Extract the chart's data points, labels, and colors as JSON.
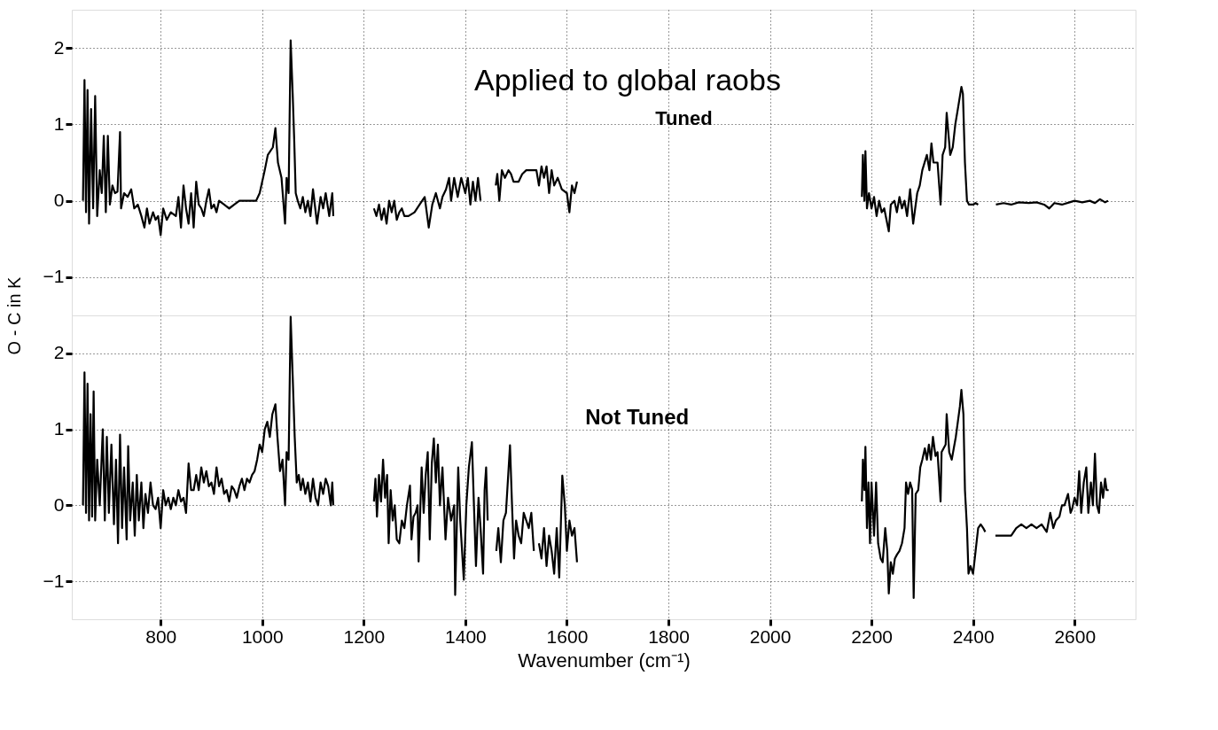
{
  "chart_data": [
    {
      "type": "line",
      "ylabel": "O - C in K",
      "annotations": [
        "Applied to global raobs",
        "Tuned"
      ],
      "xlim": [
        625,
        2720
      ],
      "ylim": [
        -1.5,
        2.5
      ],
      "xticks": [
        800,
        1000,
        1200,
        1400,
        1600,
        1800,
        2000,
        2200,
        2400,
        2600
      ],
      "yticks": [
        -1,
        0,
        1,
        2
      ],
      "grid": true,
      "tick_labels": "y",
      "series": [
        {
          "color": "#000000",
          "x": [
            647,
            650,
            653,
            656,
            659,
            663,
            667,
            671,
            675,
            680,
            684,
            688,
            692,
            696,
            700,
            705,
            710,
            715,
            720,
            722,
            728,
            735,
            742,
            748,
            755,
            762,
            768,
            773,
            778,
            785,
            790,
            795,
            800,
            805,
            812,
            820,
            830,
            835,
            840,
            845,
            850,
            855,
            860,
            865,
            870,
            875,
            880,
            885,
            890,
            895,
            900,
            905,
            910,
            915,
            925,
            935,
            945,
            955,
            988,
            995,
            1005,
            1011,
            1021,
            1026,
            1031,
            1038,
            1045,
            1048,
            1052,
            1056,
            1060,
            1063,
            1066,
            1070,
            1075,
            1080,
            1085,
            1090,
            1095,
            1100,
            1108,
            1115,
            1120,
            1125,
            1132,
            1138,
            1140,
            1180,
            1220,
            1225,
            1230,
            1235,
            1240,
            1245,
            1250,
            1255,
            1260,
            1265,
            1270,
            1275,
            1280,
            1288,
            1300,
            1310,
            1320,
            1328,
            1335,
            1342,
            1350,
            1355,
            1362,
            1368,
            1372,
            1378,
            1385,
            1392,
            1400,
            1405,
            1410,
            1415,
            1420,
            1425,
            1430,
            1445,
            1460,
            1463,
            1467,
            1472,
            1478,
            1485,
            1490,
            1495,
            1505,
            1512,
            1520,
            1528,
            1540,
            1545,
            1550,
            1555,
            1560,
            1565,
            1570,
            1575,
            1582,
            1590,
            1600,
            1605,
            1610,
            1615,
            1620,
            1900,
            2181,
            2183,
            2186,
            2188,
            2191,
            2195,
            2200,
            2205,
            2210,
            2215,
            2220,
            2225,
            2234,
            2238,
            2245,
            2250,
            2255,
            2260,
            2265,
            2270,
            2276,
            2282,
            2285,
            2290,
            2295,
            2300,
            2309,
            2314,
            2318,
            2322,
            2330,
            2336,
            2340,
            2345,
            2348,
            2355,
            2360,
            2365,
            2370,
            2377,
            2380,
            2384,
            2388,
            2392,
            2400,
            2405,
            2410,
            2428,
            2445,
            2460,
            2475,
            2490,
            2510,
            2525,
            2540,
            2550,
            2560,
            2575,
            2590,
            2600,
            2615,
            2630,
            2640,
            2650,
            2660,
            2666
          ],
          "values": [
            0.0,
            1.58,
            -0.15,
            1.45,
            -0.3,
            1.2,
            -0.1,
            1.37,
            -0.2,
            0.4,
            0.1,
            0.85,
            -0.15,
            0.85,
            -0.05,
            0.2,
            0.1,
            0.12,
            0.9,
            -0.1,
            0.1,
            0.05,
            0.15,
            -0.1,
            -0.05,
            -0.2,
            -0.35,
            -0.1,
            -0.3,
            -0.15,
            -0.25,
            -0.2,
            -0.45,
            -0.1,
            -0.25,
            -0.15,
            -0.2,
            0.05,
            -0.35,
            0.2,
            -0.1,
            -0.3,
            0.1,
            -0.35,
            0.25,
            -0.05,
            -0.1,
            -0.2,
            0.0,
            0.15,
            -0.1,
            -0.05,
            -0.15,
            0.0,
            -0.05,
            -0.1,
            -0.05,
            0.0,
            0.0,
            0.1,
            0.4,
            0.6,
            0.7,
            0.95,
            0.5,
            0.3,
            -0.3,
            0.3,
            0.1,
            2.1,
            1.4,
            0.8,
            0.1,
            0.0,
            -0.1,
            0.05,
            -0.15,
            0.0,
            -0.2,
            0.15,
            -0.3,
            0.05,
            -0.1,
            0.1,
            -0.2,
            0.1,
            -0.2,
            null,
            -0.1,
            -0.2,
            -0.05,
            -0.25,
            -0.1,
            -0.3,
            0.0,
            -0.15,
            0.0,
            -0.25,
            -0.15,
            -0.1,
            -0.2,
            -0.2,
            -0.15,
            -0.05,
            0.05,
            -0.35,
            -0.05,
            0.1,
            -0.1,
            0.05,
            0.15,
            0.3,
            0.0,
            0.3,
            0.05,
            0.3,
            0.1,
            0.3,
            -0.05,
            0.25,
            0.0,
            0.3,
            0.0,
            null,
            0.2,
            0.35,
            0.0,
            0.4,
            0.3,
            0.4,
            0.35,
            0.25,
            0.25,
            0.35,
            0.4,
            0.4,
            0.4,
            0.2,
            0.45,
            0.3,
            0.45,
            0.1,
            0.4,
            0.2,
            0.3,
            0.15,
            0.1,
            -0.15,
            0.2,
            0.1,
            0.25,
            null,
            0.05,
            0.6,
            0.0,
            0.65,
            -0.1,
            0.1,
            -0.1,
            0.05,
            -0.2,
            0.0,
            -0.15,
            -0.1,
            -0.4,
            -0.05,
            0.0,
            -0.15,
            0.05,
            -0.1,
            0.0,
            -0.2,
            0.15,
            -0.3,
            -0.15,
            0.1,
            0.2,
            0.4,
            0.6,
            0.4,
            0.75,
            0.5,
            0.5,
            -0.05,
            0.6,
            0.7,
            1.15,
            0.6,
            0.7,
            1.0,
            1.2,
            1.49,
            1.4,
            0.5,
            0.0,
            -0.05,
            -0.05,
            -0.03,
            -0.05,
            null,
            -0.05,
            -0.03,
            -0.05,
            -0.02,
            -0.03,
            -0.02,
            -0.05,
            -0.1,
            -0.03,
            -0.05,
            -0.02,
            0.0,
            -0.02,
            0.0,
            -0.03,
            0.02,
            -0.02,
            0.0
          ]
        }
      ]
    },
    {
      "type": "line",
      "xlabel": "Wavenumber (cm⁻¹)",
      "annotations": [
        "Not Tuned"
      ],
      "xlim": [
        625,
        2720
      ],
      "ylim": [
        -1.5,
        2.5
      ],
      "xticks": [
        800,
        1000,
        1200,
        1400,
        1600,
        1800,
        2000,
        2200,
        2400,
        2600
      ],
      "yticks": [
        -1,
        0,
        1,
        2
      ],
      "grid": true,
      "series": [
        {
          "color": "#000000",
          "x": [
            647,
            650,
            653,
            656,
            659,
            662,
            665,
            668,
            671,
            675,
            680,
            686,
            690,
            694,
            698,
            703,
            708,
            712,
            716,
            720,
            724,
            728,
            733,
            736,
            740,
            745,
            749,
            753,
            757,
            762,
            766,
            770,
            775,
            780,
            785,
            790,
            795,
            800,
            805,
            810,
            815,
            820,
            825,
            830,
            835,
            840,
            845,
            850,
            855,
            860,
            865,
            870,
            875,
            880,
            885,
            890,
            895,
            900,
            905,
            910,
            915,
            920,
            925,
            930,
            935,
            940,
            945,
            950,
            955,
            960,
            965,
            970,
            975,
            980,
            985,
            990,
            995,
            1000,
            1005,
            1010,
            1015,
            1020,
            1026,
            1030,
            1035,
            1040,
            1045,
            1048,
            1052,
            1056,
            1060,
            1064,
            1068,
            1072,
            1076,
            1080,
            1085,
            1090,
            1095,
            1100,
            1105,
            1110,
            1115,
            1120,
            1125,
            1130,
            1135,
            1138,
            1140,
            1180,
            1220,
            1223,
            1226,
            1230,
            1234,
            1238,
            1242,
            1246,
            1249,
            1253,
            1257,
            1261,
            1265,
            1270,
            1275,
            1280,
            1285,
            1291,
            1294,
            1298,
            1302,
            1306,
            1308,
            1314,
            1318,
            1322,
            1326,
            1330,
            1334,
            1338,
            1342,
            1346,
            1350,
            1355,
            1361,
            1366,
            1372,
            1378,
            1380,
            1386,
            1390,
            1397,
            1402,
            1407,
            1413,
            1417,
            1421,
            1426,
            1430,
            1435,
            1438,
            1441,
            1444,
            1452,
            1461,
            1465,
            1470,
            1475,
            1480,
            1488,
            1492,
            1496,
            1500,
            1505,
            1510,
            1515,
            1520,
            1525,
            1530,
            1535,
            1540,
            1545,
            1550,
            1555,
            1560,
            1565,
            1570,
            1575,
            1580,
            1585,
            1591,
            1596,
            1600,
            1605,
            1610,
            1615,
            1620,
            1900,
            2181,
            2183,
            2186,
            2188,
            2191,
            2194,
            2197,
            2200,
            2205,
            2209,
            2213,
            2218,
            2222,
            2227,
            2231,
            2234,
            2238,
            2242,
            2246,
            2250,
            2255,
            2260,
            2265,
            2268,
            2272,
            2276,
            2280,
            2283,
            2287,
            2292,
            2296,
            2300,
            2305,
            2309,
            2313,
            2317,
            2321,
            2326,
            2330,
            2336,
            2338,
            2342,
            2346,
            2348,
            2353,
            2358,
            2362,
            2366,
            2370,
            2374,
            2377,
            2381,
            2384,
            2388,
            2391,
            2395,
            2400,
            2405,
            2410,
            2415,
            2420,
            2424,
            2434,
            2444,
            2455,
            2465,
            2475,
            2485,
            2495,
            2505,
            2515,
            2525,
            2535,
            2545,
            2552,
            2558,
            2563,
            2570,
            2575,
            2580,
            2587,
            2592,
            2595,
            2600,
            2605,
            2609,
            2613,
            2618,
            2623,
            2627,
            2632,
            2636,
            2640,
            2644,
            2648,
            2652,
            2656,
            2660,
            2663,
            2667
          ],
          "values": [
            0.0,
            1.75,
            -0.1,
            1.6,
            -0.2,
            1.2,
            -0.15,
            1.5,
            -0.2,
            0.6,
            0.0,
            1.0,
            -0.2,
            0.9,
            -0.1,
            0.8,
            -0.25,
            0.6,
            -0.5,
            0.93,
            -0.3,
            0.5,
            -0.45,
            0.78,
            -0.2,
            0.3,
            -0.4,
            0.4,
            -0.2,
            0.3,
            -0.3,
            0.15,
            -0.1,
            0.3,
            0.0,
            -0.05,
            0.1,
            -0.3,
            0.2,
            0.0,
            0.1,
            -0.05,
            0.1,
            0.0,
            0.2,
            0.05,
            0.1,
            -0.1,
            0.55,
            0.2,
            0.2,
            0.4,
            0.2,
            0.5,
            0.3,
            0.45,
            0.25,
            0.3,
            0.15,
            0.5,
            0.25,
            0.35,
            0.15,
            0.2,
            0.05,
            0.25,
            0.2,
            0.1,
            0.25,
            0.35,
            0.2,
            0.35,
            0.3,
            0.4,
            0.45,
            0.6,
            0.8,
            0.7,
            1.0,
            1.1,
            0.9,
            1.2,
            1.33,
            0.9,
            0.45,
            0.6,
            0.0,
            0.7,
            0.6,
            2.48,
            1.7,
            0.9,
            0.3,
            0.4,
            0.2,
            0.35,
            0.15,
            0.3,
            0.05,
            0.35,
            0.1,
            0.0,
            0.3,
            0.15,
            0.35,
            0.25,
            0.0,
            0.3,
            0.0,
            null,
            0.05,
            0.35,
            -0.15,
            0.4,
            0.05,
            0.6,
            0.1,
            0.4,
            -0.5,
            0.2,
            -0.2,
            0.0,
            -0.45,
            -0.5,
            -0.2,
            -0.3,
            0.0,
            0.26,
            -0.45,
            -0.15,
            -0.1,
            0.0,
            -0.74,
            0.5,
            -0.1,
            0.4,
            0.7,
            -0.45,
            0.55,
            0.88,
            0.3,
            0.8,
            0.0,
            0.5,
            -0.45,
            0.1,
            -0.2,
            0.0,
            -1.18,
            0.5,
            -0.2,
            -0.98,
            0.0,
            0.5,
            0.83,
            0.0,
            -0.8,
            0.1,
            -0.3,
            -0.9,
            0.2,
            0.5,
            -0.2,
            null,
            -0.6,
            -0.3,
            -0.75,
            -0.2,
            -0.1,
            0.79,
            0.0,
            -0.7,
            -0.2,
            -0.4,
            -0.5,
            -0.1,
            -0.2,
            -0.3,
            -0.1,
            -0.6,
            null,
            -0.5,
            -0.7,
            -0.3,
            -0.8,
            -0.4,
            -0.6,
            -0.9,
            -0.3,
            -0.95,
            0.39,
            0.0,
            -0.6,
            -0.2,
            -0.4,
            -0.3,
            -0.75,
            null,
            0.05,
            0.6,
            0.2,
            0.77,
            -0.3,
            0.3,
            -0.5,
            0.3,
            -0.4,
            0.3,
            -0.5,
            -0.7,
            -0.75,
            -0.3,
            -0.6,
            -1.16,
            -0.75,
            -0.9,
            -0.7,
            -0.65,
            -0.6,
            -0.5,
            -0.3,
            0.3,
            0.15,
            0.3,
            0.21,
            -1.22,
            0.15,
            0.2,
            0.5,
            0.6,
            0.75,
            0.6,
            0.8,
            0.6,
            0.9,
            0.65,
            0.7,
            0.05,
            0.7,
            0.75,
            0.8,
            1.2,
            0.7,
            0.6,
            0.75,
            0.9,
            1.1,
            1.3,
            1.52,
            1.2,
            0.2,
            -0.3,
            -0.9,
            -0.8,
            -0.9,
            -0.6,
            -0.3,
            -0.25,
            -0.3,
            -0.35,
            null,
            -0.4,
            -0.4,
            -0.4,
            -0.4,
            -0.3,
            -0.25,
            -0.3,
            -0.25,
            -0.3,
            -0.25,
            -0.35,
            -0.1,
            -0.3,
            -0.2,
            -0.15,
            0.0,
            0.0,
            0.15,
            -0.1,
            -0.05,
            0.1,
            0.0,
            0.45,
            -0.1,
            0.3,
            0.5,
            -0.1,
            0.3,
            0.0,
            0.68,
            0.0,
            -0.1,
            0.3,
            0.1,
            0.35,
            0.2,
            0.2
          ]
        }
      ]
    }
  ]
}
